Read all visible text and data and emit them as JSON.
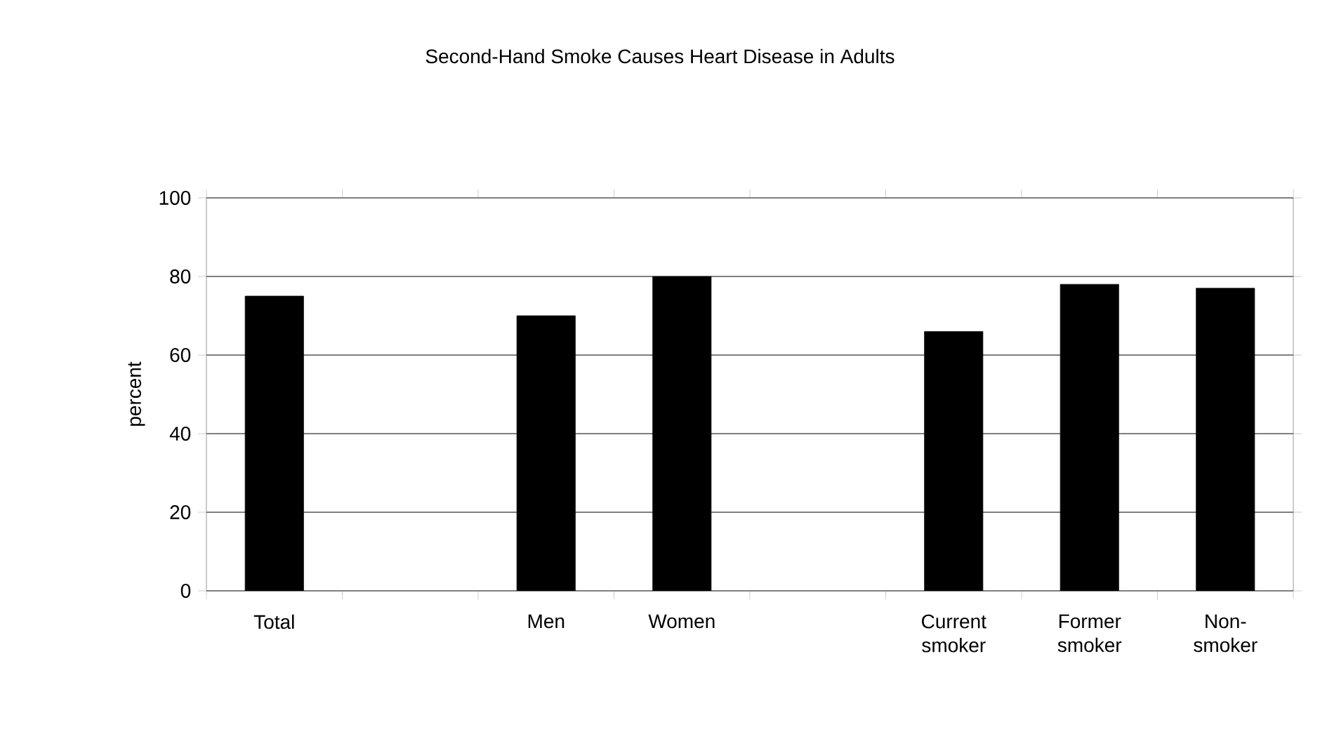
{
  "chart_data": {
    "type": "bar",
    "title": "Second-Hand Smoke Causes Heart Disease in Adults",
    "ylabel": "percent",
    "categories": [
      "Total",
      null,
      "Men",
      "Women",
      null,
      "Current smoker",
      "Former smoker",
      "Non-smoker"
    ],
    "values": [
      75,
      null,
      70,
      80,
      null,
      66,
      78,
      77
    ],
    "color": "#000000",
    "ylim": [
      0,
      100
    ],
    "yticks": [
      0,
      20,
      40,
      60,
      80,
      100
    ],
    "grid": "y"
  }
}
